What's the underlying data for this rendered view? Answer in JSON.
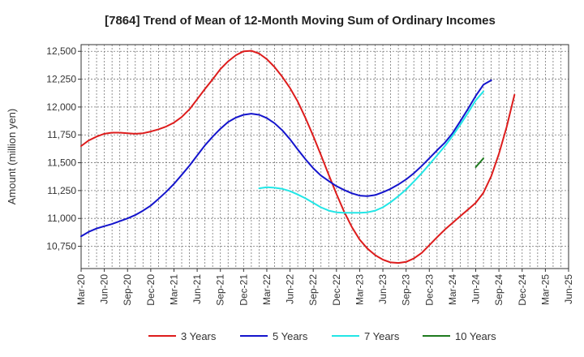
{
  "chart_data": {
    "type": "line",
    "title": "[7864]  Trend of Mean of 12-Month Moving Sum of Ordinary Incomes",
    "xlabel": "",
    "ylabel": "Amount (million yen)",
    "ylim": [
      10550,
      12560
    ],
    "y_ticks": [
      10750,
      11000,
      11250,
      11500,
      11750,
      12000,
      12250,
      12500
    ],
    "y_tick_labels": [
      "10,750",
      "11,000",
      "11,250",
      "11,500",
      "11,750",
      "12,000",
      "12,250",
      "12,500"
    ],
    "x_tick_labels": [
      "Mar-20",
      "Jun-20",
      "Sep-20",
      "Dec-20",
      "Mar-21",
      "Jun-21",
      "Sep-21",
      "Dec-21",
      "Mar-22",
      "Jun-22",
      "Sep-22",
      "Dec-22",
      "Mar-23",
      "Jun-23",
      "Sep-23",
      "Dec-23",
      "Mar-24",
      "Jun-24",
      "Sep-24",
      "Dec-24",
      "Mar-25",
      "Jun-25"
    ],
    "x_unit": "quarter index from Mar-20",
    "grid": true,
    "legend_position": "bottom",
    "series": [
      {
        "name": "3 Years",
        "color": "#dd1c1c",
        "points": [
          [
            0,
            11650
          ],
          [
            0.33,
            11700
          ],
          [
            0.67,
            11735
          ],
          [
            1,
            11760
          ],
          [
            1.33,
            11770
          ],
          [
            1.67,
            11770
          ],
          [
            2,
            11765
          ],
          [
            2.33,
            11760
          ],
          [
            2.67,
            11765
          ],
          [
            3,
            11780
          ],
          [
            3.33,
            11800
          ],
          [
            3.67,
            11825
          ],
          [
            4,
            11860
          ],
          [
            4.33,
            11910
          ],
          [
            4.67,
            11980
          ],
          [
            5,
            12070
          ],
          [
            5.33,
            12160
          ],
          [
            5.67,
            12250
          ],
          [
            6,
            12340
          ],
          [
            6.33,
            12410
          ],
          [
            6.67,
            12465
          ],
          [
            7,
            12500
          ],
          [
            7.33,
            12505
          ],
          [
            7.67,
            12480
          ],
          [
            8,
            12430
          ],
          [
            8.33,
            12360
          ],
          [
            8.67,
            12270
          ],
          [
            9,
            12170
          ],
          [
            9.33,
            12050
          ],
          [
            9.67,
            11900
          ],
          [
            10,
            11740
          ],
          [
            10.33,
            11570
          ],
          [
            10.67,
            11390
          ],
          [
            11,
            11220
          ],
          [
            11.33,
            11060
          ],
          [
            11.67,
            10920
          ],
          [
            12,
            10810
          ],
          [
            12.33,
            10730
          ],
          [
            12.67,
            10670
          ],
          [
            13,
            10630
          ],
          [
            13.33,
            10605
          ],
          [
            13.67,
            10600
          ],
          [
            14,
            10610
          ],
          [
            14.33,
            10640
          ],
          [
            14.67,
            10690
          ],
          [
            15,
            10760
          ],
          [
            15.33,
            10830
          ],
          [
            15.67,
            10900
          ],
          [
            16,
            10960
          ],
          [
            16.33,
            11020
          ],
          [
            16.67,
            11080
          ],
          [
            17,
            11140
          ],
          [
            17.33,
            11230
          ],
          [
            17.67,
            11380
          ],
          [
            18,
            11580
          ],
          [
            18.33,
            11820
          ],
          [
            18.67,
            12110
          ]
        ]
      },
      {
        "name": "5 Years",
        "color": "#1414cc",
        "points": [
          [
            0,
            10840
          ],
          [
            0.33,
            10880
          ],
          [
            0.67,
            10910
          ],
          [
            1,
            10930
          ],
          [
            1.33,
            10950
          ],
          [
            1.67,
            10975
          ],
          [
            2,
            11000
          ],
          [
            2.33,
            11030
          ],
          [
            2.67,
            11070
          ],
          [
            3,
            11115
          ],
          [
            3.33,
            11175
          ],
          [
            3.67,
            11240
          ],
          [
            4,
            11310
          ],
          [
            4.33,
            11390
          ],
          [
            4.67,
            11475
          ],
          [
            5,
            11565
          ],
          [
            5.33,
            11655
          ],
          [
            5.67,
            11735
          ],
          [
            6,
            11805
          ],
          [
            6.33,
            11865
          ],
          [
            6.67,
            11905
          ],
          [
            7,
            11930
          ],
          [
            7.33,
            11940
          ],
          [
            7.67,
            11930
          ],
          [
            8,
            11900
          ],
          [
            8.33,
            11855
          ],
          [
            8.67,
            11790
          ],
          [
            9,
            11710
          ],
          [
            9.33,
            11620
          ],
          [
            9.67,
            11530
          ],
          [
            10,
            11450
          ],
          [
            10.33,
            11385
          ],
          [
            10.67,
            11335
          ],
          [
            11,
            11290
          ],
          [
            11.33,
            11255
          ],
          [
            11.67,
            11225
          ],
          [
            12,
            11205
          ],
          [
            12.33,
            11200
          ],
          [
            12.67,
            11210
          ],
          [
            13,
            11235
          ],
          [
            13.33,
            11265
          ],
          [
            13.67,
            11305
          ],
          [
            14,
            11350
          ],
          [
            14.33,
            11405
          ],
          [
            14.67,
            11470
          ],
          [
            15,
            11540
          ],
          [
            15.33,
            11610
          ],
          [
            15.67,
            11680
          ],
          [
            16,
            11765
          ],
          [
            16.33,
            11870
          ],
          [
            16.67,
            11985
          ],
          [
            17,
            12100
          ],
          [
            17.33,
            12200
          ],
          [
            17.67,
            12240
          ]
        ]
      },
      {
        "name": "7 Years",
        "color": "#22e6e6",
        "points": [
          [
            7.67,
            11270
          ],
          [
            8,
            11280
          ],
          [
            8.33,
            11275
          ],
          [
            8.67,
            11265
          ],
          [
            9,
            11245
          ],
          [
            9.33,
            11215
          ],
          [
            9.67,
            11180
          ],
          [
            10,
            11140
          ],
          [
            10.33,
            11100
          ],
          [
            10.67,
            11070
          ],
          [
            11,
            11055
          ],
          [
            11.33,
            11050
          ],
          [
            11.67,
            11050
          ],
          [
            12,
            11050
          ],
          [
            12.33,
            11055
          ],
          [
            12.67,
            11070
          ],
          [
            13,
            11100
          ],
          [
            13.33,
            11145
          ],
          [
            13.67,
            11200
          ],
          [
            14,
            11260
          ],
          [
            14.33,
            11330
          ],
          [
            14.67,
            11405
          ],
          [
            15,
            11485
          ],
          [
            15.33,
            11565
          ],
          [
            15.67,
            11650
          ],
          [
            16,
            11740
          ],
          [
            16.33,
            11840
          ],
          [
            16.67,
            11950
          ],
          [
            17,
            12060
          ],
          [
            17.33,
            12140
          ]
        ]
      },
      {
        "name": "10 Years",
        "color": "#1e7a1e",
        "points": [
          [
            17,
            11460
          ],
          [
            17.33,
            11540
          ]
        ]
      }
    ]
  }
}
